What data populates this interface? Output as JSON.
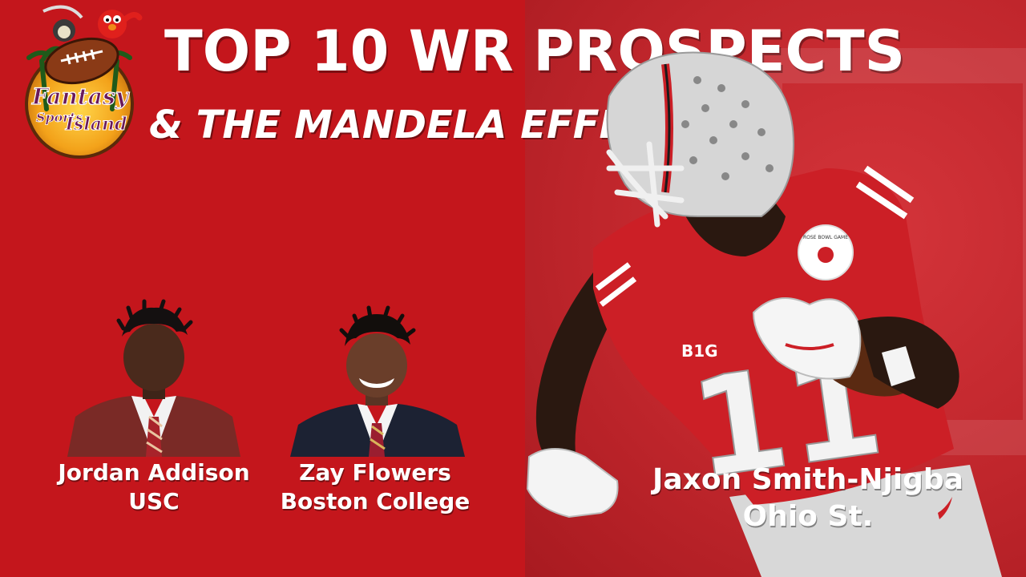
{
  "logo": {
    "line1": "Fantasy",
    "line2": "Sports",
    "line3": "Island"
  },
  "title": "TOP 10 WR PROSPECTS",
  "subtitle": "& THE MANDELA EFFECT",
  "prospects": [
    {
      "name": "Jordan Addison",
      "school": "USC"
    },
    {
      "name": "Zay Flowers",
      "school": "Boston College"
    },
    {
      "name": "Jaxon Smith-Njigba",
      "school": "Ohio St."
    }
  ],
  "jersey": {
    "number": "11",
    "conference": "B1G",
    "patch_line1": "ROSE BOWL GAME"
  },
  "colors": {
    "background": "#c4161c",
    "scarlet": "#cc1f26",
    "text": "#ffffff"
  }
}
